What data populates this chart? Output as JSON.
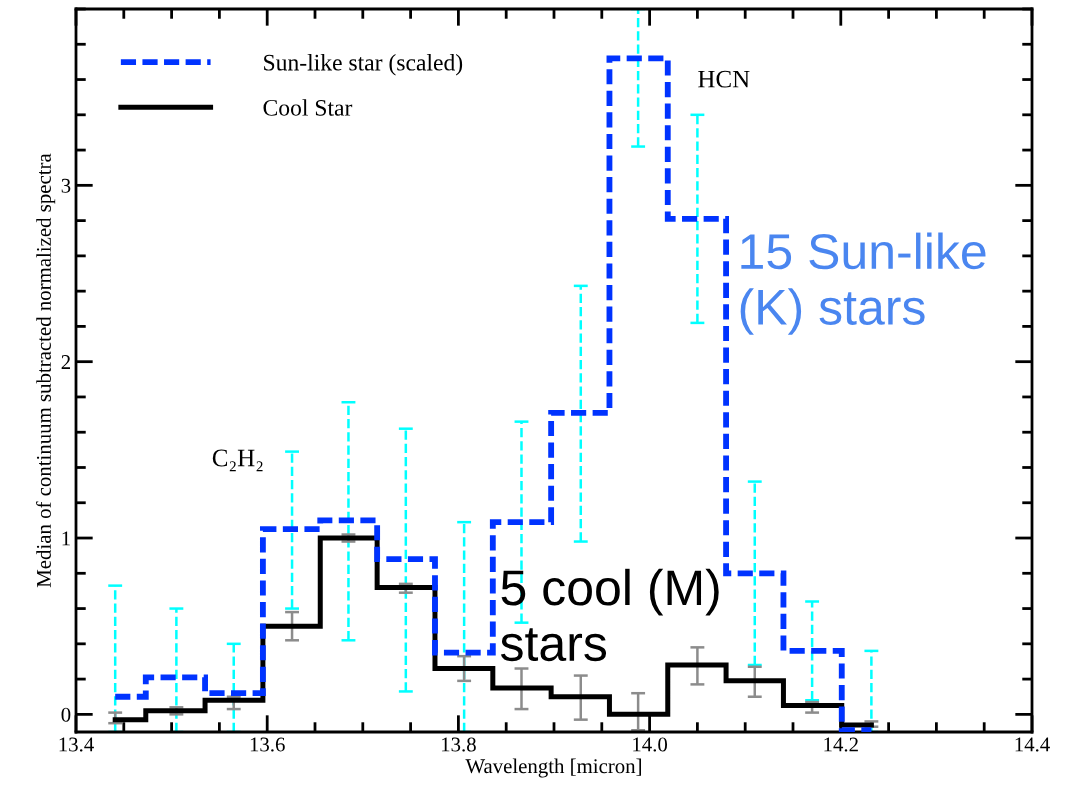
{
  "chart_data": {
    "type": "step",
    "xlabel": "Wavelength [micron]",
    "ylabel": "Median of continuum subtracted normalized spectra",
    "x": [
      13.441,
      13.505,
      13.565,
      13.626,
      13.685,
      13.745,
      13.806,
      13.866,
      13.928,
      13.988,
      14.05,
      14.11,
      14.17,
      14.232
    ],
    "series": [
      {
        "name": "Sun-like star (scaled)",
        "color": "#0033ff",
        "line_style": "dashed",
        "values": [
          0.1,
          0.21,
          0.12,
          1.05,
          1.1,
          0.88,
          0.35,
          1.09,
          1.71,
          3.72,
          2.81,
          0.8,
          0.36,
          -0.09
        ],
        "errors": [
          [
            -0.1,
            0.73
          ],
          [
            -0.1,
            0.6
          ],
          [
            -0.1,
            0.4
          ],
          [
            0.6,
            1.49
          ],
          [
            0.42,
            1.77
          ],
          [
            0.13,
            1.62
          ],
          [
            -0.1,
            1.09
          ],
          [
            0.52,
            1.66
          ],
          [
            0.98,
            2.43
          ],
          [
            3.22,
            4.0
          ],
          [
            2.22,
            3.4
          ],
          [
            0.28,
            1.32
          ],
          [
            0.08,
            0.64
          ],
          [
            -0.1,
            0.36
          ]
        ]
      },
      {
        "name": "Cool Star",
        "color": "#000000",
        "line_style": "solid",
        "values": [
          -0.03,
          0.02,
          0.08,
          0.5,
          1.0,
          0.72,
          0.26,
          0.15,
          0.1,
          0.0,
          0.28,
          0.19,
          0.05,
          -0.06
        ],
        "errors": [
          [
            -0.05,
            0.01
          ],
          [
            0.0,
            0.04
          ],
          [
            0.03,
            0.1
          ],
          [
            0.42,
            0.58
          ],
          [
            0.98,
            1.02
          ],
          [
            0.69,
            0.74
          ],
          [
            0.19,
            0.33
          ],
          [
            0.03,
            0.26
          ],
          [
            -0.03,
            0.22
          ],
          [
            -0.09,
            0.12
          ],
          [
            0.17,
            0.38
          ],
          [
            0.1,
            0.27
          ],
          [
            0.01,
            0.07
          ],
          [
            -0.07,
            -0.04
          ]
        ]
      }
    ],
    "xlim": [
      13.4,
      14.4
    ],
    "ylim": [
      -0.1,
      4.0
    ],
    "xticks": [
      {
        "value": 13.4,
        "label": "13.4"
      },
      {
        "value": 13.6,
        "label": "13.6"
      },
      {
        "value": 13.8,
        "label": "13.8"
      },
      {
        "value": 14.0,
        "label": "14.0"
      },
      {
        "value": 14.2,
        "label": "14.2"
      },
      {
        "value": 14.4,
        "label": "14.4"
      }
    ],
    "yticks": [
      0,
      1,
      2,
      3
    ],
    "legend": "top left",
    "grid": false,
    "annotations": [
      "C₂H₂",
      "HCN",
      "15 Sun-like\n(K) stars",
      "5 cool (M)\nstars"
    ]
  }
}
